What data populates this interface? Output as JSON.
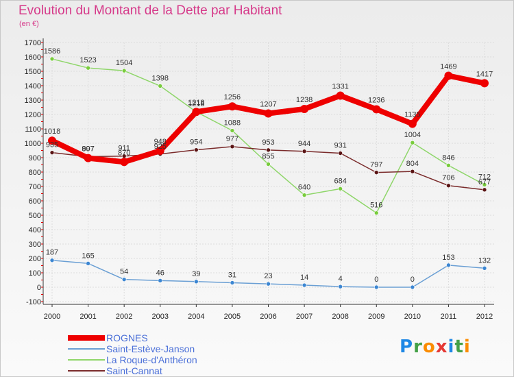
{
  "title": "Evolution du Montant de la Dette par Habitant",
  "unit_label": "(en €)",
  "logo": {
    "text": "Proxiti",
    "letters": [
      {
        "ch": "P",
        "color": "#1e88e5"
      },
      {
        "ch": "r",
        "color": "#43a047"
      },
      {
        "ch": "o",
        "color": "#fb8c00"
      },
      {
        "ch": "x",
        "color": "#e53935"
      },
      {
        "ch": "i",
        "color": "#1e88e5"
      },
      {
        "ch": "t",
        "color": "#43a047"
      },
      {
        "ch": "i",
        "color": "#fb8c00"
      }
    ]
  },
  "chart_data": {
    "type": "line",
    "x": [
      "2000",
      "2001",
      "2002",
      "2003",
      "2004",
      "2005",
      "2006",
      "2007",
      "2008",
      "2009",
      "2010",
      "2011",
      "2012"
    ],
    "yticks": [
      -100,
      0,
      100,
      200,
      300,
      400,
      500,
      600,
      700,
      800,
      900,
      1000,
      1100,
      1200,
      1300,
      1400,
      1500,
      1600,
      1700
    ],
    "ylim": [
      -100,
      1700
    ],
    "grid": true,
    "legend_position": "bottom-left",
    "series": [
      {
        "name": "ROGNES",
        "color": "#ee0000",
        "marker": "#ee0000",
        "width": 8,
        "radius": 6,
        "values": [
          1018,
          897,
          870,
          948,
          1218,
          1256,
          1207,
          1238,
          1331,
          1236,
          1135,
          1469,
          1417
        ],
        "labels": [
          "1018",
          "897",
          "870",
          "948",
          "1218",
          "1256",
          "1207",
          "1238",
          "1331",
          "1236",
          "1135",
          "1469",
          "1417"
        ]
      },
      {
        "name": "Saint-Estève-Janson",
        "color": "#6a9fd4",
        "marker": "#3c86d2",
        "width": 1.5,
        "radius": 3,
        "values": [
          187,
          165,
          54,
          46,
          39,
          31,
          23,
          14,
          4,
          0,
          0,
          153,
          132
        ],
        "labels": [
          "187",
          "165",
          "54",
          "46",
          "39",
          "31",
          "23",
          "14",
          "4",
          "0",
          "0",
          "153",
          "132"
        ]
      },
      {
        "name": "La Roque-d'Anthéron",
        "color": "#8fd66a",
        "marker": "#78cc3c",
        "width": 1.5,
        "radius": 3,
        "values": [
          1586,
          1523,
          1504,
          1398,
          1218,
          1088,
          855,
          640,
          684,
          516,
          1004,
          846,
          712
        ],
        "labels": [
          "1586",
          "1523",
          "1504",
          "1398",
          "1218",
          "1088",
          "855",
          "640",
          "684",
          "516",
          "1004",
          "846",
          "712"
        ]
      },
      {
        "name": "Saint-Cannat",
        "color": "#7a2b2b",
        "marker": "#5a1414",
        "width": 1.5,
        "radius": 3,
        "values": [
          935,
          907,
          911,
          925,
          954,
          977,
          953,
          944,
          931,
          797,
          804,
          706,
          677
        ],
        "labels": [
          "935",
          "907",
          "911",
          "925",
          "954",
          "977",
          "953",
          "944",
          "931",
          "797",
          "804",
          "706",
          "677"
        ]
      }
    ]
  }
}
